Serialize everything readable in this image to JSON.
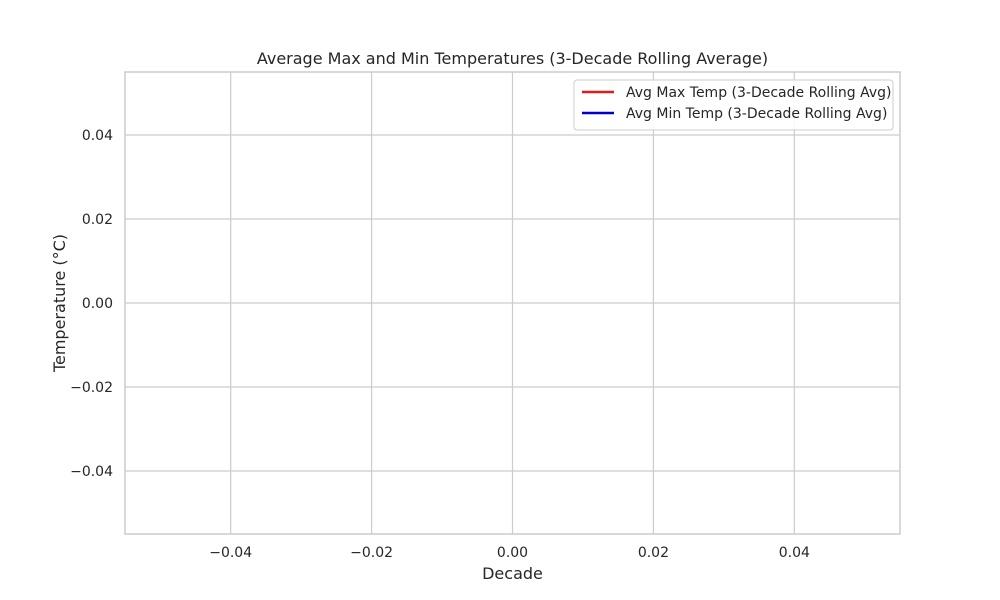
{
  "chart_data": {
    "type": "line",
    "title": "Average Max and Min Temperatures (3-Decade Rolling Average)",
    "xlabel": "Decade",
    "ylabel": "Temperature (°C)",
    "xlim": [
      -0.055,
      0.055
    ],
    "ylim": [
      -0.055,
      0.055
    ],
    "x_ticks": [
      -0.04,
      -0.02,
      0.0,
      0.02,
      0.04
    ],
    "x_tick_labels": [
      "−0.04",
      "−0.02",
      "0.00",
      "0.02",
      "0.04"
    ],
    "y_ticks": [
      -0.04,
      -0.02,
      0.0,
      0.02,
      0.04
    ],
    "y_tick_labels": [
      "−0.04",
      "−0.02",
      "0.00",
      "0.02",
      "0.04"
    ],
    "grid": true,
    "legend_position": "top-right",
    "series": [
      {
        "name": "Avg Max Temp (3-Decade Rolling Avg)",
        "color": "#e31a1c",
        "x": [],
        "y": []
      },
      {
        "name": "Avg Min Temp (3-Decade Rolling Avg)",
        "color": "#0000c8",
        "x": [],
        "y": []
      }
    ]
  }
}
